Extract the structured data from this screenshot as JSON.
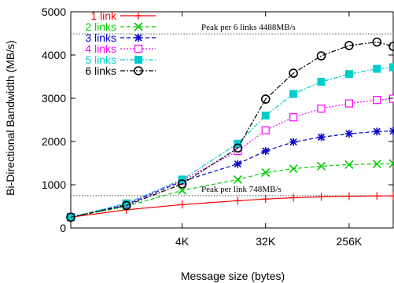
{
  "chart_data": {
    "type": "line",
    "xlabel": "Message size (bytes)",
    "ylabel": "Bi-Directional Bandwidth (MB/s)",
    "x_scale": "log2",
    "xlim": [
      256,
      786432
    ],
    "ylim": [
      0,
      5000
    ],
    "x_ticks": [
      {
        "value": 4096,
        "label": "4K"
      },
      {
        "value": 32768,
        "label": "32K"
      },
      {
        "value": 262144,
        "label": "256K"
      }
    ],
    "y_ticks": [
      0,
      1000,
      2000,
      3000,
      4000,
      5000
    ],
    "x": [
      256,
      1024,
      4096,
      16384,
      32768,
      65536,
      131072,
      262144,
      524288,
      786432
    ],
    "series": [
      {
        "name": "1 link",
        "color": "#ff0000",
        "marker": "plus",
        "dash": "solid",
        "values": [
          250,
          420,
          540,
          630,
          670,
          700,
          720,
          735,
          740,
          742
        ]
      },
      {
        "name": "2 links",
        "color": "#00cc00",
        "marker": "x",
        "dash": "dashed",
        "values": [
          250,
          500,
          870,
          1120,
          1280,
          1370,
          1430,
          1465,
          1480,
          1490
        ]
      },
      {
        "name": "3 links",
        "color": "#0000cc",
        "marker": "star",
        "dash": "dashed",
        "values": [
          250,
          540,
          1080,
          1480,
          1780,
          1990,
          2100,
          2180,
          2230,
          2240
        ]
      },
      {
        "name": "4 links",
        "color": "#ff00ff",
        "marker": "square-open",
        "dash": "dotted",
        "values": [
          250,
          560,
          1100,
          1780,
          2260,
          2560,
          2760,
          2880,
          2960,
          2990
        ]
      },
      {
        "name": "5 links",
        "color": "#00cccc",
        "marker": "square-filled",
        "dash": "dashdot",
        "values": [
          250,
          570,
          1120,
          1950,
          2600,
          3100,
          3380,
          3560,
          3680,
          3720
        ]
      },
      {
        "name": "6 links",
        "color": "#000000",
        "marker": "circle-open",
        "dash": "dashdot",
        "values": [
          250,
          520,
          1020,
          1850,
          2980,
          3580,
          3980,
          4220,
          4300,
          4200
        ]
      }
    ],
    "peak_lines": [
      {
        "value": 4488,
        "label": "Peak per 6 links 4488MB/s"
      },
      {
        "value": 748,
        "label": "Peak per link 748MB/s"
      }
    ],
    "grid": false,
    "legend_position": "top-left"
  }
}
